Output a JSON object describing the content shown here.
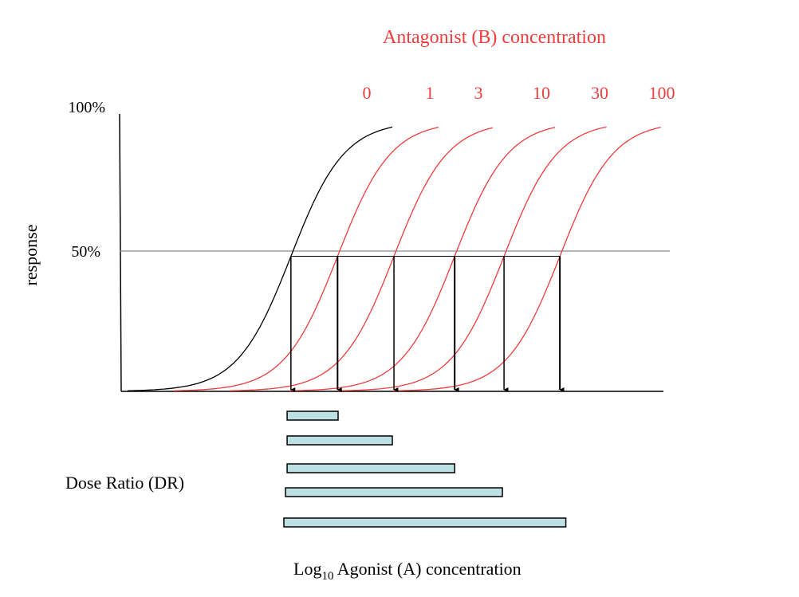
{
  "chart_data": {
    "type": "line",
    "title": "Antagonist (B) concentration",
    "xlabel_main": "Log",
    "xlabel_sub": "10",
    "xlabel_rest": " Agonist (A) concentration",
    "ylabel": "response",
    "y_ticks": [
      {
        "value": 100,
        "label": "100%"
      },
      {
        "value": 50,
        "label": "50%"
      }
    ],
    "ylim": [
      0,
      100
    ],
    "xlim": [
      0,
      10
    ],
    "reference_line": {
      "y": 50
    },
    "series": [
      {
        "name": "0",
        "color": "#000000",
        "ec50": 3.13,
        "x_start": 0.12,
        "x_end": 5.0
      },
      {
        "name": "1",
        "color": "#f03c3c",
        "ec50": 3.99,
        "x_start": 0.97,
        "x_end": 5.85
      },
      {
        "name": "3",
        "color": "#f03c3c",
        "ec50": 5.03,
        "x_start": 2.0,
        "x_end": 6.85
      },
      {
        "name": "10",
        "color": "#f03c3c",
        "ec50": 6.15,
        "x_start": 3.1,
        "x_end": 8.0
      },
      {
        "name": "30",
        "color": "#f03c3c",
        "ec50": 7.06,
        "x_start": 4.0,
        "x_end": 8.95
      },
      {
        "name": "100",
        "color": "#f03c3c",
        "ec50": 8.09,
        "x_start": 5.0,
        "x_end": 9.95
      }
    ],
    "dose_ratio_label": "Dose Ratio (DR)",
    "dose_ratio_bars": [
      {
        "start": 3.06,
        "end": 4.0
      },
      {
        "start": 3.06,
        "end": 5.0
      },
      {
        "start": 3.06,
        "end": 6.15
      },
      {
        "start": 3.03,
        "end": 7.03
      },
      {
        "start": 3.0,
        "end": 8.2
      }
    ],
    "colors": {
      "antagonist": "#f03c3c",
      "control": "#000000",
      "bar_fill": "#bde0e4",
      "reference_line": "#8a8a8a"
    }
  }
}
